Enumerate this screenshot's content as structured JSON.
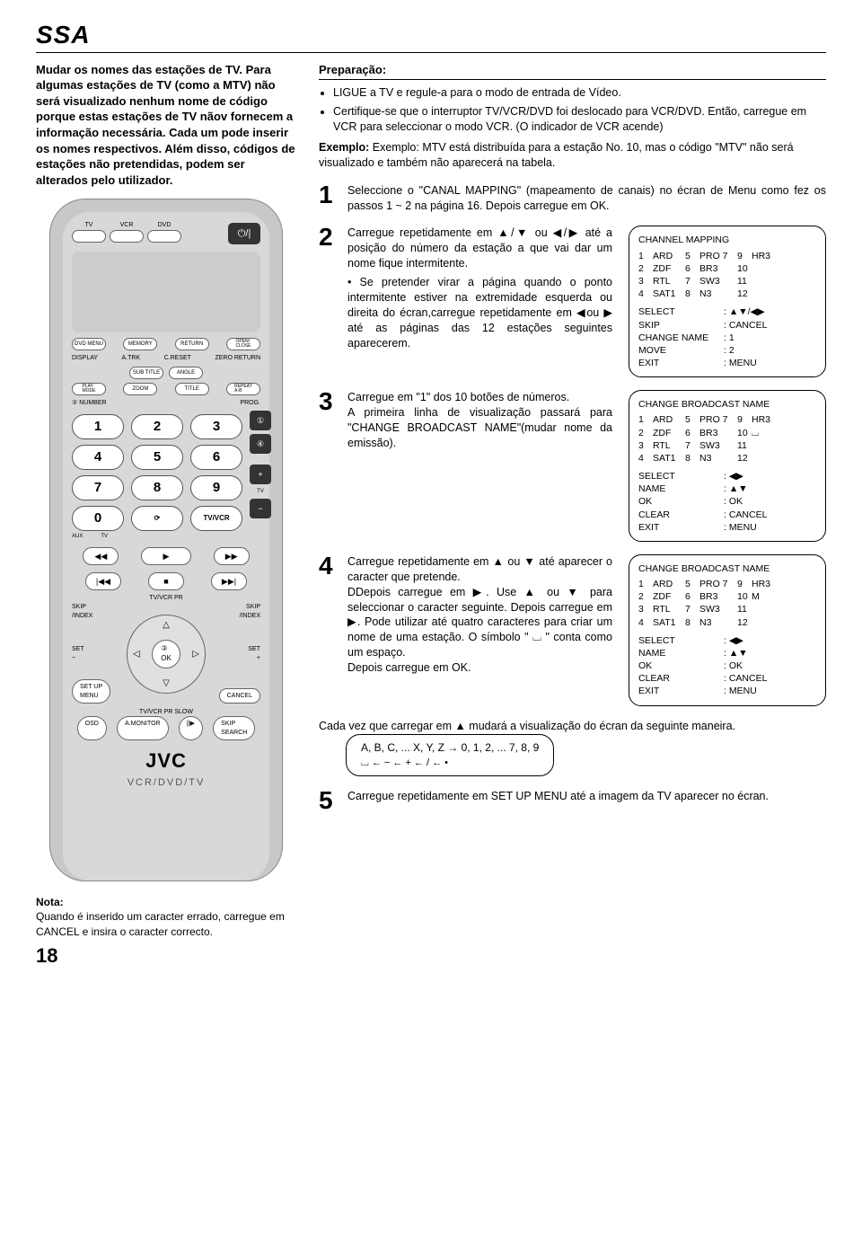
{
  "header": "SSA",
  "left": {
    "intro": "Mudar os nomes das estações de TV. Para algumas estações de TV (como a MTV) não será visualizado nenhum nome de código porque estas estações de TV nãov fornecem a informação necessária. Cada um pode inserir os nomes respectivos. Além disso, códigos de estações não pretendidas, podem ser alterados pelo utilizador.",
    "note_label": "Nota:",
    "note_text": "Quando é inserido um caracter errado, carregue em CANCEL e insira o caracter correcto.",
    "page_num": "18"
  },
  "remote": {
    "top_labels": [
      "TV",
      "VCR",
      "DVD"
    ],
    "power": "⏻/|",
    "row2_labels": [
      "DVD MENU",
      "MEMORY",
      "RETURN",
      "OPEN/\nCLOSE"
    ],
    "row3_labels": [
      "DISPLAY",
      "A.TRK",
      "C.RESET",
      "ZERO RETURN"
    ],
    "row3b_labels": [
      "SUB TITLE",
      "ANGLE"
    ],
    "row4_labels": [
      "PLAY\nMODE",
      "ZOOM",
      "TITLE",
      "REPEAT\nA-B"
    ],
    "number_label": "② NUMBER",
    "prog_label": "PROG.",
    "numbers": [
      "1",
      "2",
      "3",
      "4",
      "5",
      "6",
      "7",
      "8",
      "9",
      "0"
    ],
    "aux": "AUX",
    "tv": "TV",
    "tvvcr": "TV/VCR",
    "prog_plus": "+",
    "prog_minus": "−",
    "skip_index": "SKIP\n/INDEX",
    "tvvcr_pr": "TV/VCR PR",
    "set_minus": "SET\n−",
    "set_plus": "SET\n+",
    "ok": "③\nOK",
    "setup": "SET UP\nMENU",
    "cancel": "CANCEL",
    "osd": "OSD",
    "amon": "A.MONITOR",
    "skipsearch": "SKIP\nSEARCH",
    "slow": "SLOW",
    "brand": "JVC",
    "brand_sub": "VCR/DVD/TV"
  },
  "right": {
    "prep_title": "Preparação:",
    "bullets": [
      "LIGUE a TV e regule-a para o modo de entrada de Vídeo.",
      "Certifique-se que o interruptor TV/VCR/DVD foi deslocado para VCR/DVD. Então, carregue em VCR para seleccionar o modo VCR. (O indicador de VCR acende)"
    ],
    "example": "Exemplo: MTV está distribuída para a estação No. 10, mas o código \"MTV\" não será visualizado e também não aparecerá na tabela.",
    "step1": "Seleccione o \"CANAL MAPPING\" (mapeamento de canais) no écran de Menu como fez os passos 1 ~ 2 na página 16. Depois carregue em OK.",
    "step2": "Carregue repetidamente em ▲/▼ ou ◀/▶ até a posição do número da estação a que vai dar um nome fique intermitente.",
    "step2b": "• Se pretender virar a página quando o ponto intermitente estiver na extremidade esquerda ou direita do écran,carregue repetidamente em ◀ou ▶ até as páginas das 12 estações seguintes aparecerem.",
    "step3": "Carregue em \"1\" dos 10 botões de números.",
    "step3b": "A primeira linha de visualização passará para \"CHANGE BROADCAST NAME\"(mudar nome da emissão).",
    "step4": "Carregue repetidamente em ▲ ou ▼ até aparecer o caracter que pretende.",
    "step4b": "DDepois carregue em ▶. Use ▲ ou ▼ para seleccionar o caracter seguinte. Depois carregue em ▶. Pode utilizar até quatro caracteres para criar um nome de uma estação. O símbolo \" ⌴ \" conta como um espaço.",
    "step4c": "Depois carregue em OK.",
    "seq_intro": "Cada vez que carregar em ▲ mudará a visualização do écran da seguinte maneira.",
    "seq_top": "A, B, C, ... X, Y, Z → 0, 1, 2, ... 7, 8, 9",
    "seq_bot": "⌴ ← − ← + ← / ← •",
    "step5": "Carregue repetidamente em SET UP MENU até a imagem da TV aparecer no écran."
  },
  "osd1": {
    "title": "CHANNEL MAPPING",
    "rows": [
      [
        "1",
        "ARD",
        "5",
        "PRO 7",
        "9",
        "HR3"
      ],
      [
        "2",
        "ZDF",
        "6",
        "BR3",
        "10",
        ""
      ],
      [
        "3",
        "RTL",
        "7",
        "SW3",
        "11",
        ""
      ],
      [
        "4",
        "SAT1",
        "8",
        "N3",
        "12",
        ""
      ]
    ],
    "actions": [
      [
        "SELECT",
        ": ▲▼/◀▶"
      ],
      [
        "SKIP",
        ": CANCEL"
      ],
      [
        "CHANGE NAME",
        ": 1"
      ],
      [
        "MOVE",
        ": 2"
      ],
      [
        "EXIT",
        ": MENU"
      ]
    ]
  },
  "osd2": {
    "title": "CHANGE BROADCAST NAME",
    "rows": [
      [
        "1",
        "ARD",
        "5",
        "PRO 7",
        "9",
        "HR3"
      ],
      [
        "2",
        "ZDF",
        "6",
        "BR3",
        "10",
        "⌴"
      ],
      [
        "3",
        "RTL",
        "7",
        "SW3",
        "11",
        ""
      ],
      [
        "4",
        "SAT1",
        "8",
        "N3",
        "12",
        ""
      ]
    ],
    "actions": [
      [
        "SELECT",
        ": ◀▶"
      ],
      [
        "NAME",
        ": ▲▼"
      ],
      [
        "OK",
        ": OK"
      ],
      [
        "CLEAR",
        ": CANCEL"
      ],
      [
        "EXIT",
        ": MENU"
      ]
    ]
  },
  "osd3": {
    "title": "CHANGE BROADCAST NAME",
    "rows": [
      [
        "1",
        "ARD",
        "5",
        "PRO 7",
        "9",
        "HR3"
      ],
      [
        "2",
        "ZDF",
        "6",
        "BR3",
        "10",
        "M"
      ],
      [
        "3",
        "RTL",
        "7",
        "SW3",
        "11",
        ""
      ],
      [
        "4",
        "SAT1",
        "8",
        "N3",
        "12",
        ""
      ]
    ],
    "actions": [
      [
        "SELECT",
        ": ◀▶"
      ],
      [
        "NAME",
        ": ▲▼"
      ],
      [
        "OK",
        ": OK"
      ],
      [
        "CLEAR",
        ": CANCEL"
      ],
      [
        "EXIT",
        ": MENU"
      ]
    ]
  }
}
